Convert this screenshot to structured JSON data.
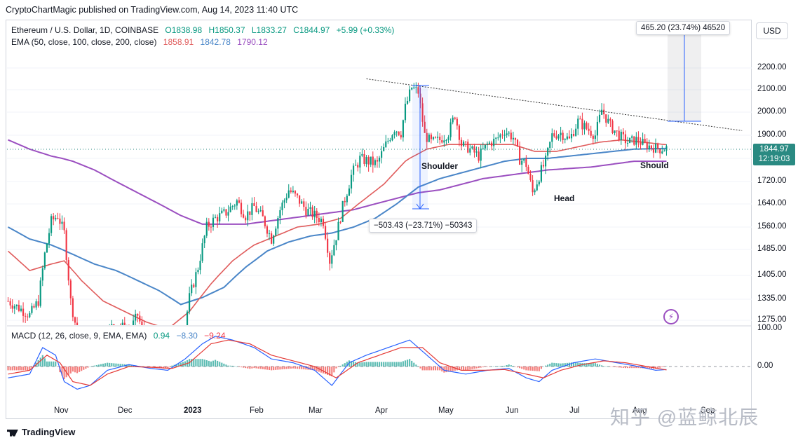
{
  "header": {
    "published": "CryptoChartMagic published on TradingView.com, Aug 14, 2023 11:40 UTC"
  },
  "legend": {
    "symbol": "Ethereum / U.S. Dollar, 1D, COINBASE",
    "open": "O1838.98",
    "high": "H1850.37",
    "low": "L1833.27",
    "close": "C1844.97",
    "change": "+5.99 (+0.33%)",
    "ema_label": "EMA (50, close, 100, close, 200, close)",
    "ema50": "1858.91",
    "ema100": "1842.78",
    "ema200": "1790.12"
  },
  "macd_legend": {
    "label": "MACD (12, 26, close, 9, EMA, EMA)",
    "hist": "0.94",
    "macd": "−8.30",
    "signal": "−9.24"
  },
  "currency_button": "USD",
  "price_tag": {
    "price": "1844.97",
    "countdown": "12:19:03"
  },
  "annotations": {
    "shoulder_left": "Shoulder",
    "head": "Head",
    "shoulder_right": "Should",
    "measure_down": "−503.43 (−23.71%) −50343",
    "measure_up": "465.20 (23.74%) 46520"
  },
  "footer": {
    "brand": "TradingView",
    "watermark": "知乎 @蓝鲸北辰"
  },
  "colors": {
    "up": "#089981",
    "down": "#f23645",
    "ema50": "#e05c5c",
    "ema100": "#4a86c8",
    "ema200": "#9b4fc0"
  },
  "chart_data": {
    "type": "candlestick",
    "title": "Ethereum / U.S. Dollar, 1D, COINBASE",
    "y_ticks": [
      2200,
      2100,
      2000,
      1900,
      1800,
      1720,
      1640,
      1560,
      1485,
      1405,
      1335,
      1275
    ],
    "y_tick_labels": [
      "2200.00",
      "2100.00",
      "2000.00",
      "1900.00",
      "1800.00",
      "1720.00",
      "1640.00",
      "1560.00",
      "1485.00",
      "1405.00",
      "1335.00",
      "1275.00"
    ],
    "ylim": [
      1250,
      2320
    ],
    "x_labels": [
      "Nov",
      "Dec",
      "2023",
      "Feb",
      "Mar",
      "Apr",
      "May",
      "Jun",
      "Jul",
      "Aug",
      "Sep"
    ],
    "price_anchors": [
      [
        0,
        1330
      ],
      [
        5,
        1310
      ],
      [
        10,
        1290
      ],
      [
        14,
        1330
      ],
      [
        17,
        1470
      ],
      [
        20,
        1580
      ],
      [
        23,
        1600
      ],
      [
        26,
        1540
      ],
      [
        29,
        1330
      ],
      [
        32,
        1240
      ],
      [
        38,
        1200
      ],
      [
        44,
        1230
      ],
      [
        50,
        1270
      ],
      [
        56,
        1240
      ],
      [
        60,
        1290
      ],
      [
        63,
        1230
      ],
      [
        67,
        1210
      ],
      [
        73,
        1200
      ],
      [
        78,
        1220
      ],
      [
        82,
        1260
      ],
      [
        84,
        1340
      ],
      [
        88,
        1430
      ],
      [
        92,
        1560
      ],
      [
        96,
        1590
      ],
      [
        101,
        1610
      ],
      [
        106,
        1650
      ],
      [
        110,
        1600
      ],
      [
        114,
        1630
      ],
      [
        118,
        1590
      ],
      [
        122,
        1520
      ],
      [
        126,
        1620
      ],
      [
        130,
        1690
      ],
      [
        134,
        1660
      ],
      [
        138,
        1620
      ],
      [
        142,
        1600
      ],
      [
        146,
        1580
      ],
      [
        149,
        1450
      ],
      [
        152,
        1530
      ],
      [
        155,
        1630
      ],
      [
        159,
        1740
      ],
      [
        163,
        1800
      ],
      [
        167,
        1790
      ],
      [
        171,
        1780
      ],
      [
        175,
        1860
      ],
      [
        179,
        1930
      ],
      [
        182,
        1910
      ],
      [
        184,
        2020
      ],
      [
        187,
        2110
      ],
      [
        190,
        2090
      ],
      [
        193,
        1900
      ],
      [
        196,
        1870
      ],
      [
        200,
        1880
      ],
      [
        204,
        1910
      ],
      [
        207,
        1990
      ],
      [
        210,
        1860
      ],
      [
        214,
        1840
      ],
      [
        218,
        1810
      ],
      [
        222,
        1860
      ],
      [
        226,
        1880
      ],
      [
        230,
        1920
      ],
      [
        234,
        1890
      ],
      [
        237,
        1800
      ],
      [
        240,
        1780
      ],
      [
        243,
        1680
      ],
      [
        246,
        1740
      ],
      [
        249,
        1790
      ],
      [
        252,
        1900
      ],
      [
        256,
        1910
      ],
      [
        260,
        1880
      ],
      [
        264,
        1960
      ],
      [
        268,
        1930
      ],
      [
        272,
        1900
      ],
      [
        275,
        2010
      ],
      [
        279,
        1940
      ],
      [
        283,
        1900
      ],
      [
        287,
        1870
      ],
      [
        291,
        1880
      ],
      [
        295,
        1860
      ],
      [
        298,
        1850
      ],
      [
        302,
        1840
      ],
      [
        305,
        1845
      ]
    ],
    "ema50_anchors": [
      [
        0,
        1480
      ],
      [
        10,
        1420
      ],
      [
        20,
        1440
      ],
      [
        26,
        1450
      ],
      [
        34,
        1390
      ],
      [
        44,
        1330
      ],
      [
        54,
        1300
      ],
      [
        64,
        1270
      ],
      [
        74,
        1250
      ],
      [
        84,
        1300
      ],
      [
        94,
        1380
      ],
      [
        104,
        1450
      ],
      [
        114,
        1500
      ],
      [
        124,
        1530
      ],
      [
        134,
        1560
      ],
      [
        144,
        1570
      ],
      [
        154,
        1590
      ],
      [
        164,
        1650
      ],
      [
        174,
        1710
      ],
      [
        184,
        1790
      ],
      [
        194,
        1840
      ],
      [
        204,
        1860
      ],
      [
        214,
        1860
      ],
      [
        224,
        1860
      ],
      [
        234,
        1860
      ],
      [
        244,
        1830
      ],
      [
        254,
        1830
      ],
      [
        264,
        1850
      ],
      [
        274,
        1870
      ],
      [
        284,
        1880
      ],
      [
        294,
        1870
      ],
      [
        305,
        1859
      ]
    ],
    "ema100_anchors": [
      [
        0,
        1560
      ],
      [
        10,
        1520
      ],
      [
        20,
        1500
      ],
      [
        30,
        1470
      ],
      [
        40,
        1440
      ],
      [
        50,
        1420
      ],
      [
        60,
        1390
      ],
      [
        70,
        1360
      ],
      [
        80,
        1320
      ],
      [
        90,
        1340
      ],
      [
        100,
        1370
      ],
      [
        110,
        1430
      ],
      [
        120,
        1480
      ],
      [
        130,
        1510
      ],
      [
        140,
        1530
      ],
      [
        150,
        1540
      ],
      [
        160,
        1560
      ],
      [
        170,
        1590
      ],
      [
        180,
        1640
      ],
      [
        190,
        1700
      ],
      [
        200,
        1730
      ],
      [
        210,
        1750
      ],
      [
        220,
        1770
      ],
      [
        230,
        1790
      ],
      [
        240,
        1800
      ],
      [
        250,
        1800
      ],
      [
        260,
        1810
      ],
      [
        270,
        1820
      ],
      [
        280,
        1830
      ],
      [
        290,
        1840
      ],
      [
        305,
        1843
      ]
    ],
    "ema200_anchors": [
      [
        0,
        1880
      ],
      [
        10,
        1840
      ],
      [
        20,
        1810
      ],
      [
        30,
        1790
      ],
      [
        40,
        1760
      ],
      [
        50,
        1720
      ],
      [
        60,
        1680
      ],
      [
        70,
        1640
      ],
      [
        80,
        1600
      ],
      [
        90,
        1570
      ],
      [
        100,
        1570
      ],
      [
        110,
        1570
      ],
      [
        120,
        1580
      ],
      [
        130,
        1590
      ],
      [
        140,
        1600
      ],
      [
        150,
        1610
      ],
      [
        160,
        1620
      ],
      [
        170,
        1640
      ],
      [
        180,
        1660
      ],
      [
        190,
        1680
      ],
      [
        200,
        1690
      ],
      [
        210,
        1710
      ],
      [
        220,
        1730
      ],
      [
        230,
        1740
      ],
      [
        240,
        1750
      ],
      [
        250,
        1760
      ],
      [
        260,
        1765
      ],
      [
        270,
        1770
      ],
      [
        280,
        1780
      ],
      [
        290,
        1790
      ],
      [
        300,
        1790
      ]
    ],
    "trendline": [
      [
        166,
        2150
      ],
      [
        340,
        1920
      ]
    ],
    "macd": {
      "y_tick_labels": [
        "100.00",
        "0.00"
      ],
      "line_anchors": [
        [
          0,
          -30
        ],
        [
          10,
          -20
        ],
        [
          16,
          50
        ],
        [
          22,
          30
        ],
        [
          26,
          -40
        ],
        [
          32,
          -60
        ],
        [
          38,
          -50
        ],
        [
          46,
          -10
        ],
        [
          56,
          5
        ],
        [
          66,
          -5
        ],
        [
          74,
          -10
        ],
        [
          82,
          20
        ],
        [
          90,
          60
        ],
        [
          96,
          80
        ],
        [
          104,
          70
        ],
        [
          114,
          50
        ],
        [
          122,
          20
        ],
        [
          132,
          10
        ],
        [
          142,
          -10
        ],
        [
          150,
          -50
        ],
        [
          158,
          10
        ],
        [
          166,
          30
        ],
        [
          176,
          50
        ],
        [
          186,
          70
        ],
        [
          194,
          30
        ],
        [
          202,
          -10
        ],
        [
          212,
          -20
        ],
        [
          222,
          -10
        ],
        [
          232,
          -5
        ],
        [
          240,
          -30
        ],
        [
          246,
          -40
        ],
        [
          252,
          -10
        ],
        [
          262,
          10
        ],
        [
          272,
          20
        ],
        [
          282,
          10
        ],
        [
          292,
          0
        ],
        [
          300,
          -10
        ],
        [
          305,
          -8
        ]
      ],
      "signal_anchors": [
        [
          0,
          -20
        ],
        [
          10,
          -10
        ],
        [
          18,
          30
        ],
        [
          24,
          10
        ],
        [
          30,
          -40
        ],
        [
          38,
          -50
        ],
        [
          46,
          -20
        ],
        [
          56,
          0
        ],
        [
          66,
          -2
        ],
        [
          76,
          -5
        ],
        [
          84,
          10
        ],
        [
          94,
          60
        ],
        [
          102,
          70
        ],
        [
          112,
          60
        ],
        [
          122,
          30
        ],
        [
          132,
          15
        ],
        [
          142,
          0
        ],
        [
          152,
          -30
        ],
        [
          162,
          10
        ],
        [
          172,
          30
        ],
        [
          182,
          50
        ],
        [
          192,
          50
        ],
        [
          200,
          10
        ],
        [
          210,
          -10
        ],
        [
          220,
          -10
        ],
        [
          230,
          -8
        ],
        [
          240,
          -20
        ],
        [
          248,
          -30
        ],
        [
          256,
          -10
        ],
        [
          266,
          5
        ],
        [
          276,
          15
        ],
        [
          286,
          10
        ],
        [
          296,
          0
        ],
        [
          305,
          -9
        ]
      ]
    }
  }
}
